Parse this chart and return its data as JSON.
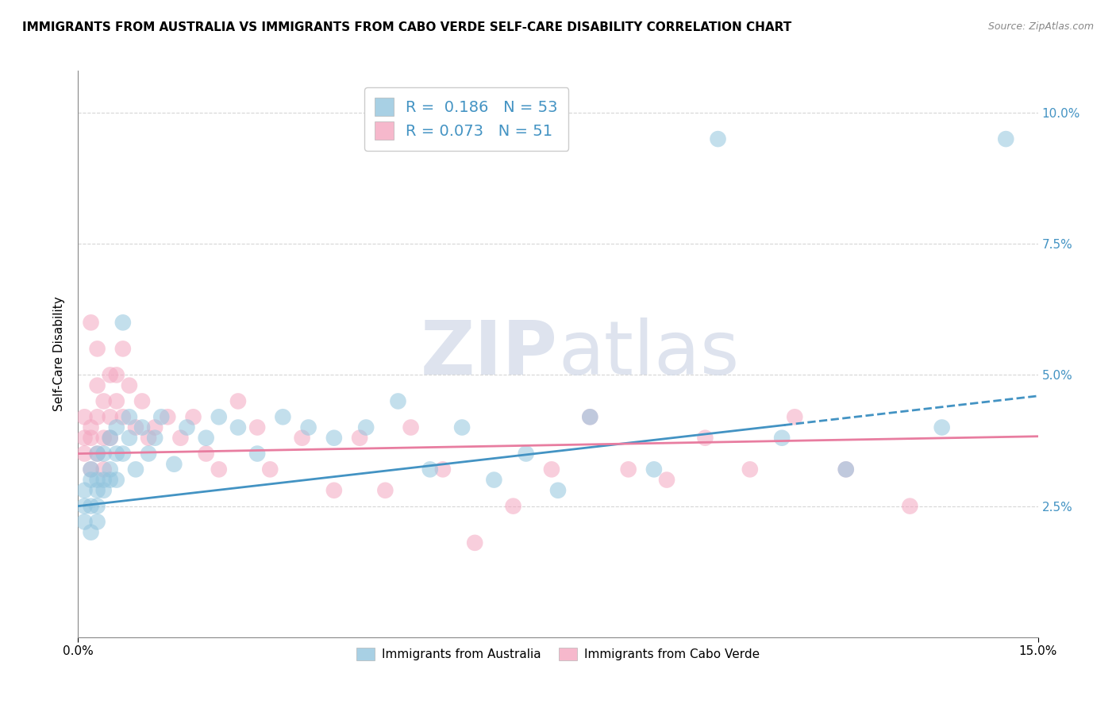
{
  "title": "IMMIGRANTS FROM AUSTRALIA VS IMMIGRANTS FROM CABO VERDE SELF-CARE DISABILITY CORRELATION CHART",
  "source": "Source: ZipAtlas.com",
  "ylabel": "Self-Care Disability",
  "xlim": [
    0.0,
    0.15
  ],
  "ylim": [
    0.0,
    0.108
  ],
  "yticks": [
    0.025,
    0.05,
    0.075,
    0.1
  ],
  "ytick_labels": [
    "2.5%",
    "5.0%",
    "7.5%",
    "10.0%"
  ],
  "series_australia": {
    "color": "#92c5de",
    "R": 0.186,
    "N": 53,
    "label": "Immigrants from Australia",
    "trend_color": "#4393c3"
  },
  "series_caboverde": {
    "color": "#f4a6c0",
    "R": 0.073,
    "N": 51,
    "label": "Immigrants from Cabo Verde",
    "trend_color": "#e87da0"
  },
  "australia_x": [
    0.001,
    0.001,
    0.001,
    0.002,
    0.002,
    0.002,
    0.002,
    0.003,
    0.003,
    0.003,
    0.003,
    0.003,
    0.004,
    0.004,
    0.004,
    0.005,
    0.005,
    0.005,
    0.006,
    0.006,
    0.006,
    0.007,
    0.007,
    0.008,
    0.008,
    0.009,
    0.01,
    0.011,
    0.012,
    0.013,
    0.015,
    0.017,
    0.02,
    0.022,
    0.025,
    0.028,
    0.032,
    0.036,
    0.04,
    0.045,
    0.05,
    0.055,
    0.06,
    0.065,
    0.07,
    0.075,
    0.08,
    0.09,
    0.1,
    0.11,
    0.12,
    0.135,
    0.145
  ],
  "australia_y": [
    0.022,
    0.028,
    0.025,
    0.02,
    0.03,
    0.025,
    0.032,
    0.028,
    0.022,
    0.035,
    0.03,
    0.025,
    0.03,
    0.035,
    0.028,
    0.03,
    0.038,
    0.032,
    0.035,
    0.03,
    0.04,
    0.035,
    0.06,
    0.038,
    0.042,
    0.032,
    0.04,
    0.035,
    0.038,
    0.042,
    0.033,
    0.04,
    0.038,
    0.042,
    0.04,
    0.035,
    0.042,
    0.04,
    0.038,
    0.04,
    0.045,
    0.032,
    0.04,
    0.03,
    0.035,
    0.028,
    0.042,
    0.032,
    0.095,
    0.038,
    0.032,
    0.04,
    0.095
  ],
  "caboverde_x": [
    0.001,
    0.001,
    0.001,
    0.002,
    0.002,
    0.002,
    0.002,
    0.003,
    0.003,
    0.003,
    0.003,
    0.004,
    0.004,
    0.004,
    0.005,
    0.005,
    0.005,
    0.006,
    0.006,
    0.007,
    0.007,
    0.008,
    0.009,
    0.01,
    0.011,
    0.012,
    0.014,
    0.016,
    0.018,
    0.02,
    0.022,
    0.025,
    0.028,
    0.03,
    0.035,
    0.04,
    0.044,
    0.048,
    0.052,
    0.057,
    0.062,
    0.068,
    0.074,
    0.08,
    0.086,
    0.092,
    0.098,
    0.105,
    0.112,
    0.12,
    0.13
  ],
  "caboverde_y": [
    0.038,
    0.042,
    0.035,
    0.04,
    0.038,
    0.06,
    0.032,
    0.042,
    0.048,
    0.035,
    0.055,
    0.038,
    0.045,
    0.032,
    0.05,
    0.042,
    0.038,
    0.05,
    0.045,
    0.055,
    0.042,
    0.048,
    0.04,
    0.045,
    0.038,
    0.04,
    0.042,
    0.038,
    0.042,
    0.035,
    0.032,
    0.045,
    0.04,
    0.032,
    0.038,
    0.028,
    0.038,
    0.028,
    0.04,
    0.032,
    0.018,
    0.025,
    0.032,
    0.042,
    0.032,
    0.03,
    0.038,
    0.032,
    0.042,
    0.032,
    0.025
  ],
  "background_color": "#ffffff",
  "grid_color": "#cccccc",
  "watermark_zip": "ZIP",
  "watermark_atlas": "atlas",
  "title_fontsize": 11,
  "legend_R_color": "#4393c3",
  "legend_N_color": "#4393c3"
}
